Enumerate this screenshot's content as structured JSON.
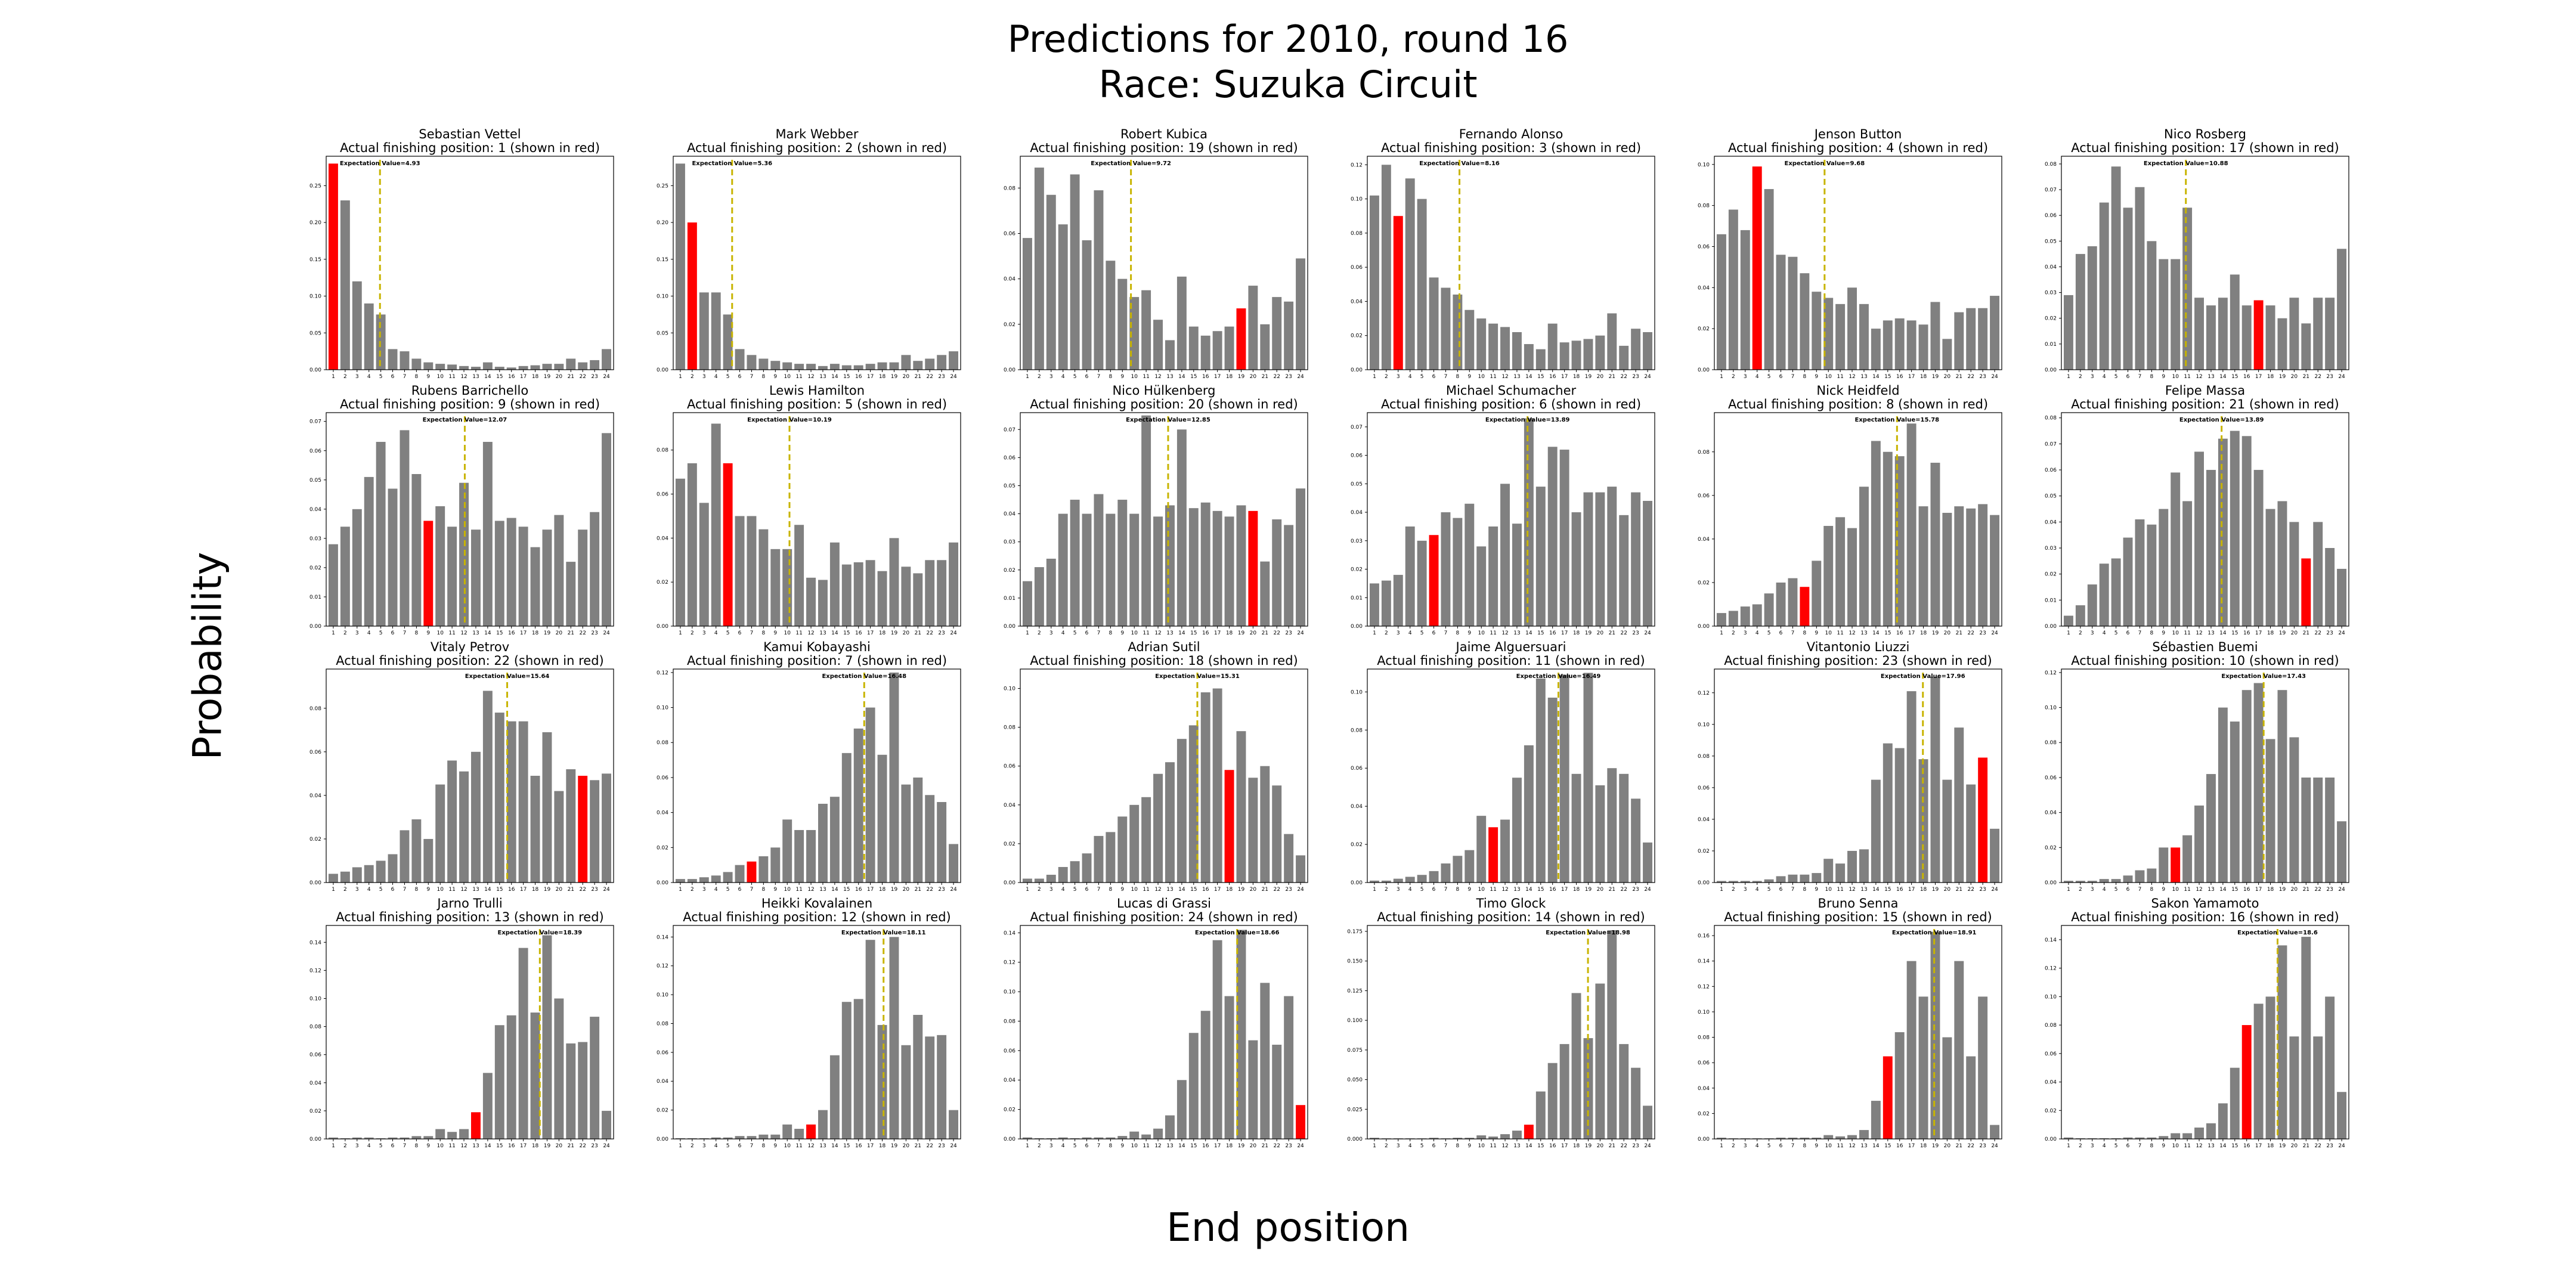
{
  "figure": {
    "title_line1": "Predictions for 2010, round 16",
    "title_line2": "Race: Suzuka Circuit",
    "xlabel": "End position",
    "ylabel": "Probability"
  },
  "colors": {
    "bar": "#808080",
    "actual": "#ff0000",
    "expectation": "#c8b400"
  },
  "chart_data": [
    {
      "type": "bar",
      "driver": "Sebastian Vettel",
      "subtitle": "Actual finishing position: 1 (shown in red)",
      "actual": 1,
      "expectation": 4.93,
      "expectation_label": "Expectation Value=4.93",
      "yticks": [
        0,
        0.05,
        0.1,
        0.15,
        0.2,
        0.25
      ],
      "ylim": [
        0,
        0.29
      ],
      "values": [
        0.28,
        0.23,
        0.12,
        0.09,
        0.075,
        0.028,
        0.025,
        0.015,
        0.01,
        0.008,
        0.007,
        0.005,
        0.004,
        0.01,
        0.004,
        0.003,
        0.005,
        0.006,
        0.008,
        0.008,
        0.015,
        0.01,
        0.013,
        0.028
      ]
    },
    {
      "type": "bar",
      "driver": "Mark Webber",
      "subtitle": "Actual finishing position: 2 (shown in red)",
      "actual": 2,
      "expectation": 5.36,
      "expectation_label": "Expectation Value=5.36",
      "yticks": [
        0,
        0.05,
        0.1,
        0.15,
        0.2,
        0.25
      ],
      "ylim": [
        0,
        0.29
      ],
      "values": [
        0.28,
        0.2,
        0.105,
        0.105,
        0.075,
        0.028,
        0.02,
        0.015,
        0.012,
        0.01,
        0.008,
        0.008,
        0.005,
        0.008,
        0.006,
        0.006,
        0.008,
        0.01,
        0.01,
        0.02,
        0.012,
        0.015,
        0.02,
        0.025
      ]
    },
    {
      "type": "bar",
      "driver": "Robert Kubica",
      "subtitle": "Actual finishing position: 19 (shown in red)",
      "actual": 19,
      "expectation": 9.72,
      "expectation_label": "Expectation Value=9.72",
      "yticks": [
        0,
        0.02,
        0.04,
        0.06,
        0.08
      ],
      "ylim": [
        0,
        0.094
      ],
      "values": [
        0.058,
        0.089,
        0.077,
        0.064,
        0.086,
        0.057,
        0.079,
        0.048,
        0.04,
        0.032,
        0.035,
        0.022,
        0.013,
        0.041,
        0.019,
        0.015,
        0.017,
        0.019,
        0.027,
        0.037,
        0.02,
        0.032,
        0.03,
        0.049
      ]
    },
    {
      "type": "bar",
      "driver": "Fernando Alonso",
      "subtitle": "Actual finishing position: 3 (shown in red)",
      "actual": 3,
      "expectation": 8.16,
      "expectation_label": "Expectation Value=8.16",
      "yticks": [
        0,
        0.02,
        0.04,
        0.06,
        0.08,
        0.1,
        0.12
      ],
      "ylim": [
        0,
        0.125
      ],
      "values": [
        0.102,
        0.12,
        0.09,
        0.112,
        0.1,
        0.054,
        0.048,
        0.044,
        0.035,
        0.03,
        0.027,
        0.025,
        0.022,
        0.015,
        0.012,
        0.027,
        0.016,
        0.017,
        0.018,
        0.02,
        0.033,
        0.014,
        0.024,
        0.022
      ]
    },
    {
      "type": "bar",
      "driver": "Jenson Button",
      "subtitle": "Actual finishing position: 4 (shown in red)",
      "actual": 4,
      "expectation": 9.68,
      "expectation_label": "Expectation Value=9.68",
      "yticks": [
        0,
        0.02,
        0.04,
        0.06,
        0.08,
        0.1
      ],
      "ylim": [
        0,
        0.104
      ],
      "values": [
        0.066,
        0.078,
        0.068,
        0.099,
        0.088,
        0.056,
        0.055,
        0.047,
        0.038,
        0.035,
        0.032,
        0.04,
        0.032,
        0.02,
        0.024,
        0.025,
        0.024,
        0.022,
        0.033,
        0.015,
        0.028,
        0.03,
        0.03,
        0.036
      ]
    },
    {
      "type": "bar",
      "driver": "Nico Rosberg",
      "subtitle": "Actual finishing position: 17 (shown in red)",
      "actual": 17,
      "expectation": 10.88,
      "expectation_label": "Expectation Value=10.88",
      "yticks": [
        0,
        0.01,
        0.02,
        0.03,
        0.04,
        0.05,
        0.06,
        0.07,
        0.08
      ],
      "ylim": [
        0,
        0.083
      ],
      "values": [
        0.029,
        0.045,
        0.048,
        0.065,
        0.079,
        0.063,
        0.071,
        0.05,
        0.043,
        0.043,
        0.063,
        0.028,
        0.025,
        0.028,
        0.037,
        0.025,
        0.027,
        0.025,
        0.02,
        0.028,
        0.018,
        0.028,
        0.028,
        0.047
      ]
    },
    {
      "type": "bar",
      "driver": "Rubens Barrichello",
      "subtitle": "Actual finishing position: 9 (shown in red)",
      "actual": 9,
      "expectation": 12.07,
      "expectation_label": "Expectation Value=12.07",
      "yticks": [
        0,
        0.01,
        0.02,
        0.03,
        0.04,
        0.05,
        0.06,
        0.07
      ],
      "ylim": [
        0,
        0.073
      ],
      "values": [
        0.028,
        0.034,
        0.04,
        0.051,
        0.063,
        0.047,
        0.067,
        0.052,
        0.036,
        0.041,
        0.034,
        0.049,
        0.033,
        0.063,
        0.036,
        0.037,
        0.034,
        0.027,
        0.033,
        0.038,
        0.022,
        0.033,
        0.039,
        0.066
      ]
    },
    {
      "type": "bar",
      "driver": "Lewis Hamilton",
      "subtitle": "Actual finishing position: 5 (shown in red)",
      "actual": 5,
      "expectation": 10.19,
      "expectation_label": "Expectation Value=10.19",
      "yticks": [
        0,
        0.02,
        0.04,
        0.06,
        0.08
      ],
      "ylim": [
        0,
        0.097
      ],
      "values": [
        0.067,
        0.074,
        0.056,
        0.092,
        0.074,
        0.05,
        0.05,
        0.044,
        0.035,
        0.035,
        0.046,
        0.022,
        0.021,
        0.038,
        0.028,
        0.029,
        0.03,
        0.025,
        0.04,
        0.027,
        0.024,
        0.03,
        0.03,
        0.038
      ]
    },
    {
      "type": "bar",
      "driver": "Nico Hülkenberg",
      "subtitle": "Actual finishing position: 20 (shown in red)",
      "actual": 20,
      "expectation": 12.85,
      "expectation_label": "Expectation Value=12.85",
      "yticks": [
        0,
        0.01,
        0.02,
        0.03,
        0.04,
        0.05,
        0.06,
        0.07
      ],
      "ylim": [
        0,
        0.076
      ],
      "values": [
        0.016,
        0.021,
        0.024,
        0.04,
        0.045,
        0.04,
        0.047,
        0.04,
        0.045,
        0.04,
        0.075,
        0.039,
        0.043,
        0.07,
        0.042,
        0.044,
        0.041,
        0.039,
        0.043,
        0.041,
        0.023,
        0.038,
        0.036,
        0.049
      ]
    },
    {
      "type": "bar",
      "driver": "Michael Schumacher",
      "subtitle": "Actual finishing position: 6 (shown in red)",
      "actual": 6,
      "expectation": 13.89,
      "expectation_label": "Expectation Value=13.89",
      "yticks": [
        0,
        0.01,
        0.02,
        0.03,
        0.04,
        0.05,
        0.06,
        0.07
      ],
      "ylim": [
        0,
        0.075
      ],
      "values": [
        0.015,
        0.016,
        0.018,
        0.035,
        0.03,
        0.032,
        0.04,
        0.038,
        0.043,
        0.028,
        0.035,
        0.05,
        0.036,
        0.073,
        0.049,
        0.063,
        0.062,
        0.04,
        0.047,
        0.047,
        0.049,
        0.039,
        0.047,
        0.044
      ]
    },
    {
      "type": "bar",
      "driver": "Nick Heidfeld",
      "subtitle": "Actual finishing position: 8 (shown in red)",
      "actual": 8,
      "expectation": 15.78,
      "expectation_label": "Expectation Value=15.78",
      "yticks": [
        0,
        0.02,
        0.04,
        0.06,
        0.08
      ],
      "ylim": [
        0,
        0.098
      ],
      "values": [
        0.006,
        0.007,
        0.009,
        0.01,
        0.015,
        0.02,
        0.022,
        0.018,
        0.03,
        0.046,
        0.05,
        0.045,
        0.064,
        0.085,
        0.08,
        0.078,
        0.093,
        0.055,
        0.075,
        0.052,
        0.055,
        0.054,
        0.056,
        0.051
      ]
    },
    {
      "type": "bar",
      "driver": "Felipe Massa",
      "subtitle": "Actual finishing position: 21 (shown in red)",
      "actual": 21,
      "expectation": 13.89,
      "expectation_label": "Expectation Value=13.89",
      "yticks": [
        0,
        0.01,
        0.02,
        0.03,
        0.04,
        0.05,
        0.06,
        0.07,
        0.08
      ],
      "ylim": [
        0,
        0.082
      ],
      "values": [
        0.004,
        0.008,
        0.016,
        0.024,
        0.026,
        0.034,
        0.041,
        0.039,
        0.045,
        0.059,
        0.048,
        0.067,
        0.06,
        0.072,
        0.075,
        0.073,
        0.06,
        0.045,
        0.048,
        0.04,
        0.026,
        0.04,
        0.03,
        0.022
      ]
    },
    {
      "type": "bar",
      "driver": "Vitaly Petrov",
      "subtitle": "Actual finishing position: 22 (shown in red)",
      "actual": 22,
      "expectation": 15.64,
      "expectation_label": "Expectation Value=15.64",
      "yticks": [
        0,
        0.02,
        0.04,
        0.06,
        0.08
      ],
      "ylim": [
        0,
        0.098
      ],
      "values": [
        0.004,
        0.005,
        0.007,
        0.008,
        0.01,
        0.013,
        0.024,
        0.029,
        0.02,
        0.045,
        0.056,
        0.051,
        0.06,
        0.088,
        0.078,
        0.074,
        0.074,
        0.049,
        0.069,
        0.042,
        0.052,
        0.049,
        0.047,
        0.05
      ]
    },
    {
      "type": "bar",
      "driver": "Kamui Kobayashi",
      "subtitle": "Actual finishing position: 7 (shown in red)",
      "actual": 7,
      "expectation": 16.48,
      "expectation_label": "Expectation Value=16.48",
      "yticks": [
        0,
        0.02,
        0.04,
        0.06,
        0.08,
        0.1,
        0.12
      ],
      "ylim": [
        0,
        0.122
      ],
      "values": [
        0.002,
        0.002,
        0.003,
        0.004,
        0.006,
        0.01,
        0.012,
        0.015,
        0.02,
        0.036,
        0.03,
        0.03,
        0.045,
        0.049,
        0.074,
        0.088,
        0.1,
        0.073,
        0.12,
        0.056,
        0.06,
        0.05,
        0.046,
        0.022
      ]
    },
    {
      "type": "bar",
      "driver": "Adrian Sutil",
      "subtitle": "Actual finishing position: 18 (shown in red)",
      "actual": 18,
      "expectation": 15.31,
      "expectation_label": "Expectation Value=15.31",
      "yticks": [
        0,
        0.02,
        0.04,
        0.06,
        0.08,
        0.1
      ],
      "ylim": [
        0,
        0.11
      ],
      "values": [
        0.002,
        0.002,
        0.004,
        0.008,
        0.011,
        0.015,
        0.024,
        0.026,
        0.034,
        0.04,
        0.044,
        0.056,
        0.062,
        0.074,
        0.081,
        0.098,
        0.1,
        0.058,
        0.078,
        0.054,
        0.06,
        0.05,
        0.025,
        0.014
      ]
    },
    {
      "type": "bar",
      "driver": "Jaime Alguersuari",
      "subtitle": "Actual finishing position: 11 (shown in red)",
      "actual": 11,
      "expectation": 16.49,
      "expectation_label": "Expectation Value=16.49",
      "yticks": [
        0,
        0.02,
        0.04,
        0.06,
        0.08,
        0.1
      ],
      "ylim": [
        0,
        0.112
      ],
      "values": [
        0.001,
        0.001,
        0.002,
        0.003,
        0.004,
        0.006,
        0.01,
        0.014,
        0.017,
        0.035,
        0.029,
        0.033,
        0.055,
        0.072,
        0.107,
        0.097,
        0.109,
        0.057,
        0.11,
        0.051,
        0.06,
        0.057,
        0.044,
        0.021
      ]
    },
    {
      "type": "bar",
      "driver": "Vitantonio Liuzzi",
      "subtitle": "Actual finishing position: 23 (shown in red)",
      "actual": 23,
      "expectation": 17.96,
      "expectation_label": "Expectation Value=17.96",
      "yticks": [
        0,
        0.02,
        0.04,
        0.06,
        0.08,
        0.1,
        0.12
      ],
      "ylim": [
        0,
        0.135
      ],
      "values": [
        0.001,
        0.001,
        0.001,
        0.001,
        0.002,
        0.004,
        0.005,
        0.005,
        0.006,
        0.015,
        0.012,
        0.02,
        0.021,
        0.065,
        0.088,
        0.085,
        0.121,
        0.078,
        0.13,
        0.065,
        0.098,
        0.062,
        0.079,
        0.034
      ]
    },
    {
      "type": "bar",
      "driver": "Sébastien Buemi",
      "subtitle": "Actual finishing position: 10 (shown in red)",
      "actual": 10,
      "expectation": 17.43,
      "expectation_label": "Expectation Value=17.43",
      "yticks": [
        0,
        0.02,
        0.04,
        0.06,
        0.08,
        0.1,
        0.12
      ],
      "ylim": [
        0,
        0.122
      ],
      "values": [
        0.001,
        0.001,
        0.001,
        0.002,
        0.002,
        0.004,
        0.007,
        0.008,
        0.02,
        0.02,
        0.027,
        0.044,
        0.062,
        0.1,
        0.092,
        0.11,
        0.114,
        0.082,
        0.11,
        0.083,
        0.06,
        0.06,
        0.06,
        0.035
      ]
    },
    {
      "type": "bar",
      "driver": "Jarno Trulli",
      "subtitle": "Actual finishing position: 13 (shown in red)",
      "actual": 13,
      "expectation": 18.39,
      "expectation_label": "Expectation Value=18.39",
      "yticks": [
        0,
        0.02,
        0.04,
        0.06,
        0.08,
        0.1,
        0.12,
        0.14
      ],
      "ylim": [
        0,
        0.152
      ],
      "values": [
        0.001,
        0.0005,
        0.001,
        0.001,
        0.0005,
        0.001,
        0.001,
        0.002,
        0.002,
        0.007,
        0.005,
        0.007,
        0.019,
        0.047,
        0.081,
        0.088,
        0.136,
        0.09,
        0.145,
        0.1,
        0.068,
        0.069,
        0.087,
        0.02
      ]
    },
    {
      "type": "bar",
      "driver": "Heikki Kovalainen",
      "subtitle": "Actual finishing position: 12 (shown in red)",
      "actual": 12,
      "expectation": 18.11,
      "expectation_label": "Expectation Value=18.11",
      "yticks": [
        0,
        0.02,
        0.04,
        0.06,
        0.08,
        0.1,
        0.12,
        0.14
      ],
      "ylim": [
        0,
        0.148
      ],
      "values": [
        0.0005,
        0.0005,
        0.0005,
        0.001,
        0.001,
        0.002,
        0.002,
        0.003,
        0.003,
        0.01,
        0.007,
        0.01,
        0.02,
        0.058,
        0.095,
        0.097,
        0.138,
        0.079,
        0.14,
        0.065,
        0.086,
        0.071,
        0.072,
        0.02
      ]
    },
    {
      "type": "bar",
      "driver": "Lucas di Grassi",
      "subtitle": "Actual finishing position: 24 (shown in red)",
      "actual": 24,
      "expectation": 18.66,
      "expectation_label": "Expectation Value=18.66",
      "yticks": [
        0,
        0.02,
        0.04,
        0.06,
        0.08,
        0.1,
        0.12,
        0.14
      ],
      "ylim": [
        0,
        0.145
      ],
      "values": [
        0.001,
        0.0005,
        0.0005,
        0.001,
        0.0005,
        0.001,
        0.001,
        0.001,
        0.002,
        0.005,
        0.003,
        0.007,
        0.016,
        0.04,
        0.072,
        0.087,
        0.135,
        0.097,
        0.142,
        0.067,
        0.106,
        0.064,
        0.097,
        0.023
      ]
    },
    {
      "type": "bar",
      "driver": "Timo Glock",
      "subtitle": "Actual finishing position: 14 (shown in red)",
      "actual": 14,
      "expectation": 18.98,
      "expectation_label": "Expectation Value=18.98",
      "yticks": [
        0,
        0.025,
        0.05,
        0.075,
        0.1,
        0.125,
        0.15,
        0.175
      ],
      "ylim": [
        0,
        0.18
      ],
      "values": [
        0.001,
        0.0005,
        0.0005,
        0.0005,
        0.0005,
        0.001,
        0.0005,
        0.001,
        0.001,
        0.003,
        0.002,
        0.004,
        0.007,
        0.012,
        0.04,
        0.064,
        0.08,
        0.123,
        0.085,
        0.131,
        0.176,
        0.08,
        0.06,
        0.028
      ]
    },
    {
      "type": "bar",
      "driver": "Bruno Senna",
      "subtitle": "Actual finishing position: 15 (shown in red)",
      "actual": 15,
      "expectation": 18.91,
      "expectation_label": "Expectation Value=18.91",
      "yticks": [
        0,
        0.02,
        0.04,
        0.06,
        0.08,
        0.1,
        0.12,
        0.14,
        0.16
      ],
      "ylim": [
        0,
        0.168
      ],
      "values": [
        0.001,
        0.0005,
        0.0005,
        0.0005,
        0.0005,
        0.001,
        0.001,
        0.001,
        0.001,
        0.003,
        0.002,
        0.003,
        0.007,
        0.03,
        0.065,
        0.084,
        0.14,
        0.112,
        0.163,
        0.08,
        0.14,
        0.065,
        0.112,
        0.011
      ]
    },
    {
      "type": "bar",
      "driver": "Sakon Yamamoto",
      "subtitle": "Actual finishing position: 16 (shown in red)",
      "actual": 16,
      "expectation": 18.6,
      "expectation_label": "Expectation Value=18.6",
      "yticks": [
        0,
        0.02,
        0.04,
        0.06,
        0.08,
        0.1,
        0.12,
        0.14
      ],
      "ylim": [
        0,
        0.15
      ],
      "values": [
        0.001,
        0.0005,
        0.0005,
        0.0005,
        0.0005,
        0.001,
        0.001,
        0.001,
        0.002,
        0.004,
        0.004,
        0.008,
        0.011,
        0.025,
        0.05,
        0.08,
        0.095,
        0.1,
        0.136,
        0.072,
        0.142,
        0.072,
        0.1,
        0.033
      ]
    }
  ]
}
